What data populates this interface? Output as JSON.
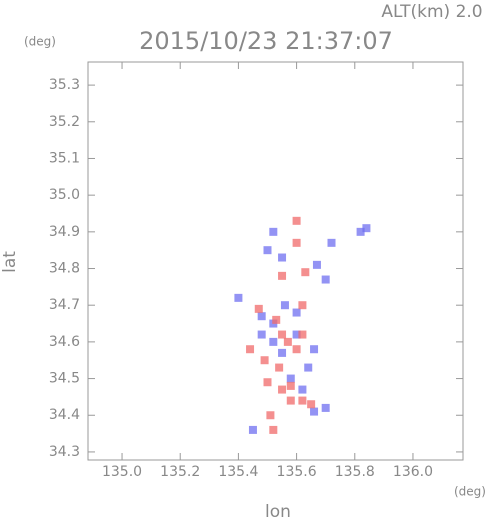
{
  "chart_data": {
    "type": "scatter",
    "title": "2015/10/23 21:37:07",
    "subtitle": "ALT(km) 2.0",
    "y_unit": "(deg)",
    "x_unit": "(deg)",
    "xlabel": "lon",
    "ylabel": "lat",
    "xlim": [
      134.883,
      136.172
    ],
    "ylim": [
      34.278,
      35.363
    ],
    "xticks": [
      {
        "value": 135.0,
        "label": "135.0"
      },
      {
        "value": 135.2,
        "label": "135.2"
      },
      {
        "value": 135.4,
        "label": "135.4"
      },
      {
        "value": 135.6,
        "label": "135.6"
      },
      {
        "value": 135.8,
        "label": "135.8"
      },
      {
        "value": 136.0,
        "label": "136.0"
      }
    ],
    "yticks": [
      {
        "value": 34.3,
        "label": "34.3"
      },
      {
        "value": 34.4,
        "label": "34.4"
      },
      {
        "value": 34.5,
        "label": "34.5"
      },
      {
        "value": 34.6,
        "label": "34.6"
      },
      {
        "value": 34.7,
        "label": "34.7"
      },
      {
        "value": 34.8,
        "label": "34.8"
      },
      {
        "value": 34.9,
        "label": "34.9"
      },
      {
        "value": 35.0,
        "label": "35.0"
      },
      {
        "value": 35.1,
        "label": "35.1"
      },
      {
        "value": 35.2,
        "label": "35.2"
      },
      {
        "value": 35.3,
        "label": "35.3"
      }
    ],
    "series": [
      {
        "color": "#6f6ff0",
        "x": [
          135.84,
          135.82,
          135.52,
          135.5,
          135.55,
          135.72,
          135.67,
          135.7,
          135.4,
          135.48,
          135.52,
          135.6,
          135.66,
          135.64,
          135.55,
          135.52,
          135.58,
          135.7,
          135.66,
          135.45,
          135.6,
          135.48,
          135.62,
          135.56
        ],
        "values": [
          34.91,
          34.9,
          34.9,
          34.85,
          34.83,
          34.87,
          34.81,
          34.77,
          34.72,
          34.67,
          34.65,
          34.62,
          34.58,
          34.53,
          34.57,
          34.6,
          34.5,
          34.42,
          34.41,
          34.36,
          34.68,
          34.62,
          34.47,
          34.7
        ]
      },
      {
        "color": "#f06a6a",
        "x": [
          135.6,
          135.6,
          135.55,
          135.63,
          135.53,
          135.49,
          135.55,
          135.57,
          135.62,
          135.6,
          135.54,
          135.5,
          135.55,
          135.58,
          135.65,
          135.62,
          135.51,
          135.52,
          135.58,
          135.44,
          135.47,
          135.62
        ],
        "values": [
          34.93,
          34.87,
          34.78,
          34.79,
          34.66,
          34.55,
          34.62,
          34.6,
          34.62,
          34.58,
          34.53,
          34.49,
          34.47,
          34.44,
          34.43,
          34.44,
          34.4,
          34.36,
          34.48,
          34.58,
          34.69,
          34.7
        ]
      }
    ]
  }
}
